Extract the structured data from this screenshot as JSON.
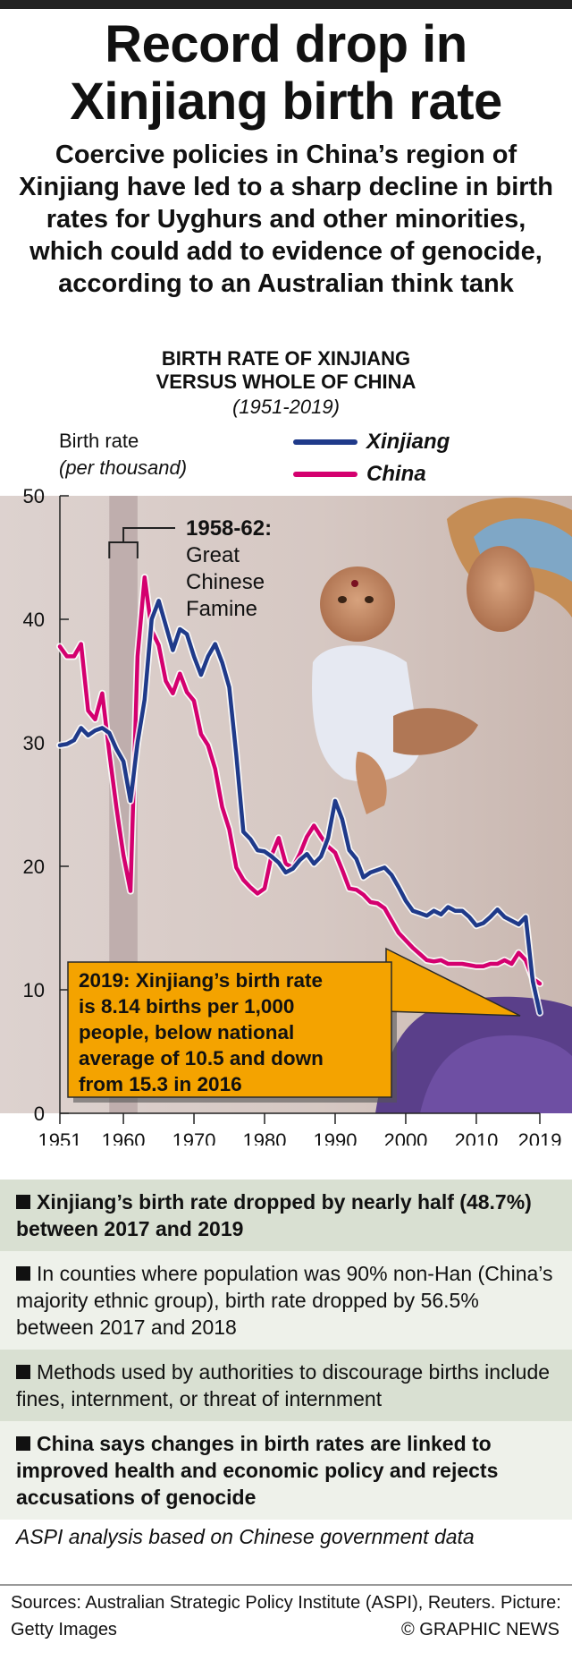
{
  "title_line1": "Record drop in",
  "title_line2": "Xinjiang birth rate",
  "subtitle": "Coercive policies in China’s region of Xinjiang have led to a sharp decline in birth rates for Uyghurs and other minorities, which could add to evidence of genocide, according to an Australian think tank",
  "chart_title_line1": "BIRTH RATE OF XINJIANG",
  "chart_title_line2": "VERSUS WHOLE OF CHINA",
  "chart_years": "(1951-2019)",
  "colors": {
    "xinjiang": "#1f3a8a",
    "china": "#d4006f",
    "callout": "#f4a300",
    "famine_band": "#b5a3a3"
  },
  "chart_data": {
    "type": "line",
    "ylabel": "Birth rate",
    "ylabel_unit": "(per thousand)",
    "ylim": [
      0,
      50
    ],
    "yticks": [
      0,
      10,
      20,
      30,
      40,
      50
    ],
    "xlim": [
      1951,
      2019
    ],
    "xticks": [
      1951,
      1960,
      1970,
      1980,
      1990,
      2000,
      2010,
      2019
    ],
    "grid": false,
    "legend": "top-right",
    "highlight": {
      "range": [
        1958,
        1962
      ],
      "label": [
        "1958-62:",
        "Great",
        "Chinese",
        "Famine"
      ]
    },
    "callout": [
      "2019: Xinjiang’s birth rate",
      "is 8.14 births per 1,000",
      "people, below national",
      "average of 10.5 and down",
      "from 15.3 in 2016"
    ],
    "series": [
      {
        "name": "Xinjiang",
        "x": [
          1951,
          1952,
          1953,
          1954,
          1955,
          1956,
          1957,
          1958,
          1959,
          1960,
          1961,
          1962,
          1963,
          1964,
          1965,
          1966,
          1967,
          1968,
          1969,
          1970,
          1971,
          1972,
          1973,
          1974,
          1975,
          1976,
          1977,
          1978,
          1979,
          1980,
          1981,
          1982,
          1983,
          1984,
          1985,
          1986,
          1987,
          1988,
          1989,
          1990,
          1991,
          1992,
          1993,
          1994,
          1995,
          1996,
          1997,
          1998,
          1999,
          2000,
          2001,
          2002,
          2003,
          2004,
          2005,
          2006,
          2007,
          2008,
          2009,
          2010,
          2011,
          2012,
          2013,
          2014,
          2015,
          2016,
          2017,
          2018,
          2019
        ],
        "values": [
          29.8,
          29.9,
          30.2,
          31.2,
          30.6,
          31,
          31.2,
          30.8,
          29.5,
          28.5,
          25.3,
          30,
          33.5,
          40,
          41.5,
          39.5,
          37.5,
          39.2,
          38.8,
          37,
          35.5,
          37,
          38,
          36.5,
          34.5,
          29,
          22.8,
          22.2,
          21.3,
          21.2,
          20.8,
          20.3,
          19.5,
          19.8,
          20.5,
          21,
          20.2,
          20.8,
          22.3,
          25.3,
          23.8,
          21.3,
          20.6,
          19.1,
          19.5,
          19.7,
          19.9,
          19.3,
          18.3,
          17.2,
          16.4,
          16.2,
          16,
          16.4,
          16.1,
          16.7,
          16.4,
          16.4,
          15.9,
          15.2,
          15.4,
          15.9,
          16.5,
          15.9,
          15.6,
          15.3,
          15.9,
          10.7,
          8.14
        ]
      },
      {
        "name": "China",
        "x": [
          1951,
          1952,
          1953,
          1954,
          1955,
          1956,
          1957,
          1958,
          1959,
          1960,
          1961,
          1962,
          1963,
          1964,
          1965,
          1966,
          1967,
          1968,
          1969,
          1970,
          1971,
          1972,
          1973,
          1974,
          1975,
          1976,
          1977,
          1978,
          1979,
          1980,
          1981,
          1982,
          1983,
          1984,
          1985,
          1986,
          1987,
          1988,
          1989,
          1990,
          1991,
          1992,
          1993,
          1994,
          1995,
          1996,
          1997,
          1998,
          1999,
          2000,
          2001,
          2002,
          2003,
          2004,
          2005,
          2006,
          2007,
          2008,
          2009,
          2010,
          2011,
          2012,
          2013,
          2014,
          2015,
          2016,
          2017,
          2018,
          2019
        ],
        "values": [
          37.8,
          37,
          37,
          38,
          32.6,
          31.9,
          34,
          29.2,
          24.8,
          20.9,
          18,
          37,
          43.4,
          39.1,
          37.9,
          35,
          34,
          35.6,
          34.1,
          33.4,
          30.7,
          29.8,
          27.9,
          24.8,
          23,
          19.9,
          18.9,
          18.3,
          17.8,
          18.2,
          20.9,
          22.3,
          20.2,
          19.9,
          21,
          22.4,
          23.3,
          22.4,
          21.6,
          21.1,
          19.7,
          18.2,
          18.1,
          17.7,
          17.1,
          17,
          16.6,
          15.6,
          14.6,
          14,
          13.4,
          12.9,
          12.4,
          12.3,
          12.4,
          12.1,
          12.1,
          12.1,
          12,
          11.9,
          11.9,
          12.1,
          12.1,
          12.4,
          12.1,
          13,
          12.4,
          10.9,
          10.5
        ]
      }
    ]
  },
  "facts": [
    "Xinjiang’s birth rate dropped by nearly half (48.7%) between 2017 and 2019",
    "In counties where population was 90% non-Han (China’s majority ethnic group), birth rate dropped by 56.5% between 2017 and 2018",
    "Methods used by authorities to discourage births include fines, internment, or threat of internment",
    "China says changes in birth rates are linked to improved health and economic policy and rejects accusations of genocide"
  ],
  "note": "ASPI analysis based on Chinese government data",
  "sources": "Sources: Australian Strategic Policy Institute (ASPI), Reuters. Picture: Getty Images",
  "credit": "© GRAPHIC NEWS"
}
